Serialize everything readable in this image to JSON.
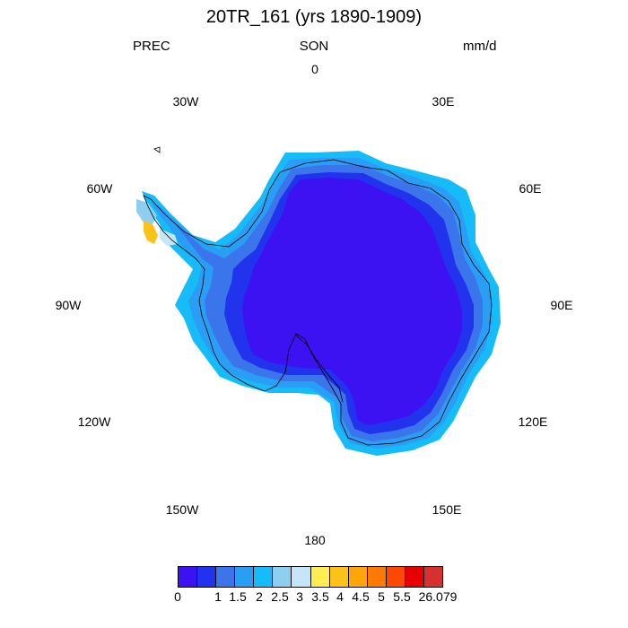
{
  "header": {
    "title": "20TR_161 (yrs 1890-1909)",
    "variable": "PREC",
    "season": "SON",
    "units": "mm/d"
  },
  "longitude_labels": [
    "0",
    "30E",
    "60E",
    "90E",
    "120E",
    "150E",
    "180",
    "150W",
    "120W",
    "90W",
    "60W",
    "30W"
  ],
  "colorbar": {
    "colors": [
      "#3c12f2",
      "#2233ee",
      "#3b75eb",
      "#2a9df5",
      "#16bbf9",
      "#8ecff0",
      "#c5e6f8",
      "#ffed52",
      "#fdc21a",
      "#fea50a",
      "#fe7a00",
      "#fe4800",
      "#e80000",
      "#d73030"
    ],
    "labels": [
      "0",
      "1",
      "1.5",
      "2",
      "2.5",
      "3",
      "3.5",
      "4",
      "4.5",
      "5",
      "5.5",
      "26.079"
    ]
  },
  "colors": {
    "interior": "#3c12f2",
    "coastal_band": "#2233ee",
    "coast": "#3b75eb",
    "outer_coast": "#2a9df5",
    "edge": "#16bbf9",
    "peninsula_light": "#8ecff0",
    "peninsula_max": "#fdc21a"
  }
}
